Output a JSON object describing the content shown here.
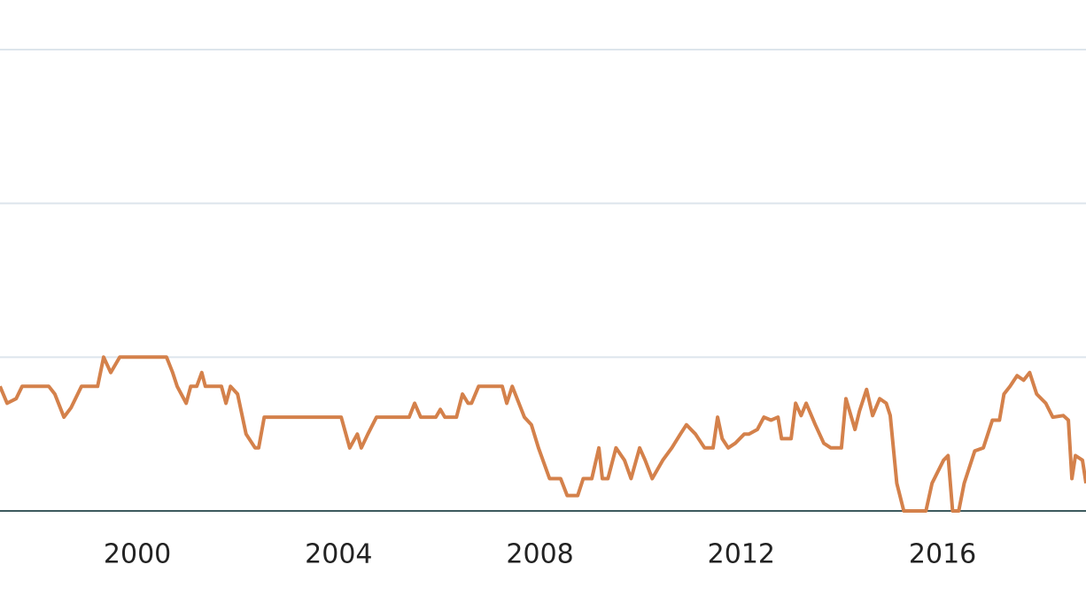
{
  "chart_data": {
    "type": "line",
    "x": [
      1997.27,
      1997.41,
      1997.59,
      1997.71,
      1998.24,
      1998.36,
      1998.54,
      1998.68,
      1998.89,
      1999.21,
      1999.33,
      1999.47,
      1999.65,
      2000.58,
      2000.7,
      2000.79,
      2000.97,
      2001.06,
      2001.18,
      2001.28,
      2001.35,
      2001.67,
      2001.76,
      2001.85,
      2001.99,
      2002.16,
      2002.34,
      2002.41,
      2002.52,
      2004.05,
      2004.22,
      2004.37,
      2004.45,
      2004.58,
      2004.75,
      2005.4,
      2005.51,
      2005.63,
      2005.93,
      2006.02,
      2006.11,
      2006.34,
      2006.46,
      2006.57,
      2006.64,
      2006.78,
      2007.25,
      2007.34,
      2007.45,
      2007.69,
      2007.83,
      2007.97,
      2008.19,
      2008.41,
      2008.54,
      2008.75,
      2008.86,
      2009.03,
      2009.17,
      2009.24,
      2009.35,
      2009.51,
      2009.68,
      2009.81,
      2009.98,
      2010.09,
      2010.23,
      2010.44,
      2010.62,
      2010.79,
      2010.91,
      2011.09,
      2011.27,
      2011.44,
      2011.53,
      2011.62,
      2011.74,
      2011.88,
      2012.06,
      2012.15,
      2012.32,
      2012.45,
      2012.59,
      2012.73,
      2012.8,
      2012.99,
      2013.08,
      2013.19,
      2013.29,
      2013.47,
      2013.64,
      2013.78,
      2013.99,
      2014.08,
      2014.26,
      2014.35,
      2014.49,
      2014.61,
      2014.75,
      2014.88,
      2014.96,
      2015.09,
      2015.23,
      2015.67,
      2015.79,
      2016.02,
      2016.11,
      2016.2,
      2016.32,
      2016.43,
      2016.64,
      2016.81,
      2016.99,
      2017.13,
      2017.22,
      2017.34,
      2017.48,
      2017.61,
      2017.73,
      2017.87,
      2018.05,
      2018.19,
      2018.4,
      2018.5,
      2018.57,
      2018.64,
      2018.78,
      2018.85
    ],
    "series": [
      {
        "color": "#d4814b",
        "values": [
          0.81,
          0.7,
          0.73,
          0.81,
          0.81,
          0.76,
          0.61,
          0.67,
          0.81,
          0.81,
          1.0,
          0.9,
          1.0,
          1.0,
          0.9,
          0.81,
          0.7,
          0.81,
          0.81,
          0.9,
          0.81,
          0.81,
          0.7,
          0.81,
          0.76,
          0.5,
          0.41,
          0.41,
          0.61,
          0.61,
          0.41,
          0.5,
          0.41,
          0.5,
          0.61,
          0.61,
          0.7,
          0.61,
          0.61,
          0.66,
          0.61,
          0.61,
          0.76,
          0.7,
          0.7,
          0.81,
          0.81,
          0.7,
          0.81,
          0.61,
          0.56,
          0.41,
          0.21,
          0.21,
          0.1,
          0.1,
          0.21,
          0.21,
          0.41,
          0.21,
          0.21,
          0.41,
          0.33,
          0.21,
          0.41,
          0.33,
          0.21,
          0.33,
          0.41,
          0.5,
          0.56,
          0.5,
          0.41,
          0.41,
          0.61,
          0.47,
          0.41,
          0.44,
          0.5,
          0.5,
          0.53,
          0.61,
          0.59,
          0.61,
          0.47,
          0.47,
          0.7,
          0.62,
          0.7,
          0.56,
          0.44,
          0.41,
          0.41,
          0.73,
          0.53,
          0.65,
          0.79,
          0.62,
          0.73,
          0.7,
          0.62,
          0.18,
          0,
          0,
          0.18,
          0.33,
          0.36,
          0,
          0,
          0.18,
          0.39,
          0.41,
          0.59,
          0.59,
          0.76,
          0.81,
          0.88,
          0.85,
          0.9,
          0.76,
          0.7,
          0.61,
          0.62,
          0.59,
          0.21,
          0.36,
          0.33,
          0.18
        ]
      }
    ],
    "xlim": [
      1997.27,
      2018.85
    ],
    "xticks": [
      2000,
      2004,
      2008,
      2012,
      2016
    ],
    "ylim": [
      0,
      3
    ],
    "yticks": [
      0,
      1,
      2,
      3
    ],
    "grid": true
  }
}
